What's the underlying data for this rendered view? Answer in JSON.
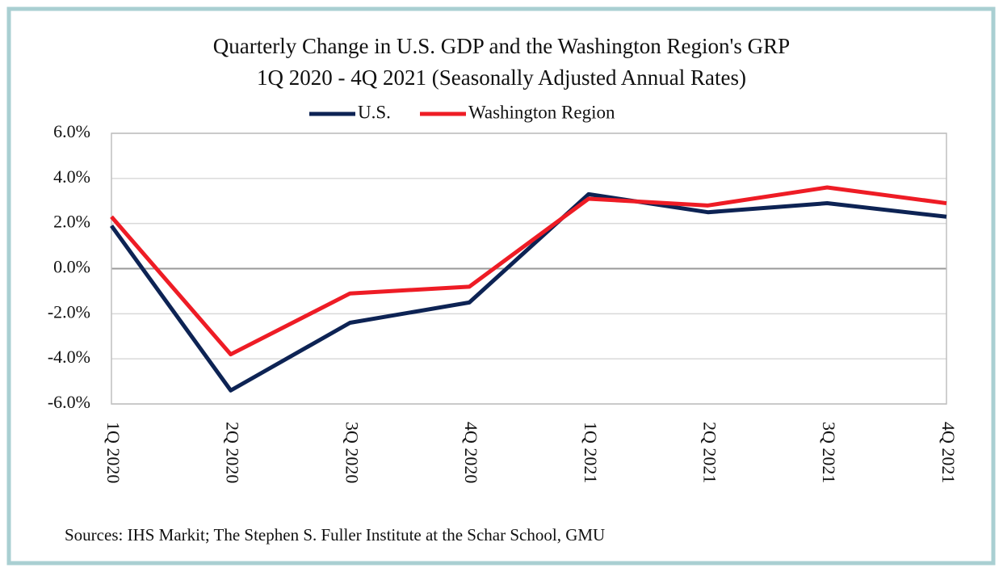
{
  "chart_data": {
    "type": "line",
    "title": "Quarterly Change in U.S. GDP and the Washington Region's GRP",
    "subtitle": "1Q 2020 - 4Q 2021 (Seasonally Adjusted Annual Rates)",
    "categories": [
      "1Q 2020",
      "2Q 2020",
      "3Q 2020",
      "4Q 2020",
      "1Q 2021",
      "2Q 2021",
      "3Q 2021",
      "4Q 2021"
    ],
    "series": [
      {
        "name": "U.S.",
        "color": "#0d2354",
        "values": [
          1.9,
          -5.4,
          -2.4,
          -1.5,
          3.3,
          2.5,
          2.9,
          2.3
        ]
      },
      {
        "name": "Washington Region",
        "color": "#ee1c25",
        "values": [
          2.3,
          -3.8,
          -1.1,
          -0.8,
          3.1,
          2.8,
          3.6,
          2.9
        ]
      }
    ],
    "ylim": [
      -6,
      6
    ],
    "yticks": [
      {
        "value": -6,
        "label": "-6.0%"
      },
      {
        "value": -4,
        "label": "-4.0%"
      },
      {
        "value": -2,
        "label": "-2.0%"
      },
      {
        "value": 0,
        "label": "0.0%"
      },
      {
        "value": 2,
        "label": "2.0%"
      },
      {
        "value": 4,
        "label": "4.0%"
      },
      {
        "value": 6,
        "label": "6.0%"
      }
    ],
    "grid": true,
    "legend": "top",
    "source": "Sources: IHS Markit; The Stephen S. Fuller Institute at the Schar School, GMU"
  }
}
